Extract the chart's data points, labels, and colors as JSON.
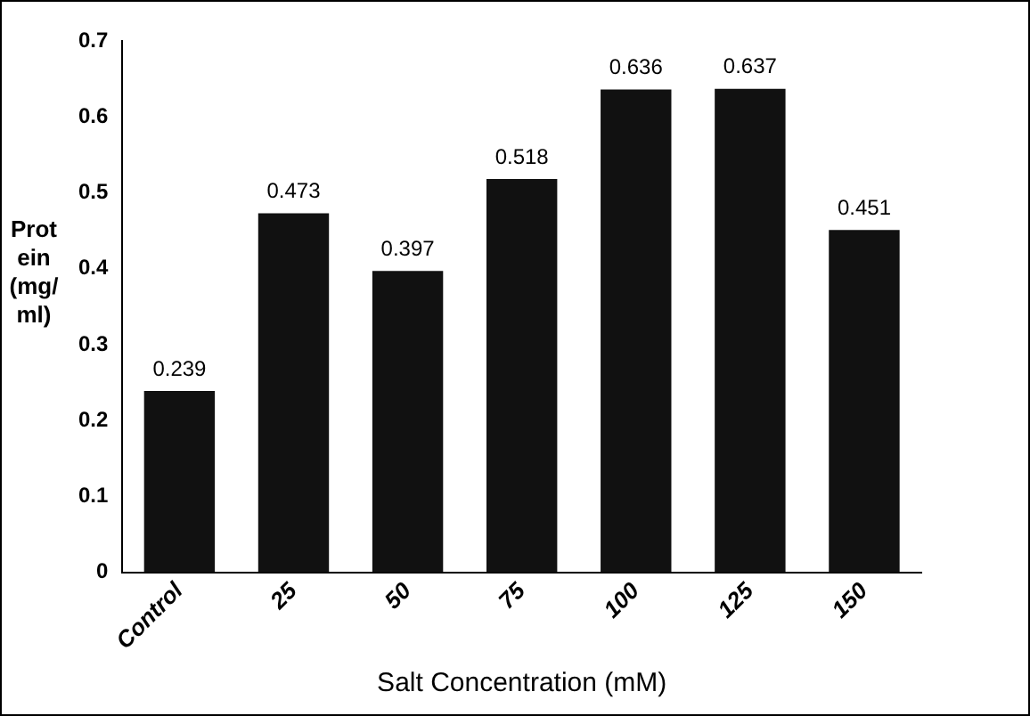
{
  "chart_data": {
    "type": "bar",
    "xlabel": "Salt Concentration (mM)",
    "ylabel": "Protein (mg/ml)",
    "categories": [
      "Control",
      "25",
      "50",
      "75",
      "100",
      "125",
      "150"
    ],
    "values": [
      0.239,
      0.473,
      0.397,
      0.518,
      0.636,
      0.637,
      0.451
    ],
    "color": "#111111",
    "ylim": [
      0,
      0.7
    ],
    "yticks": [
      0,
      0.1,
      0.2,
      0.3,
      0.4,
      0.5,
      0.6,
      0.7
    ],
    "grid": false,
    "legend": false,
    "data_labels": true
  }
}
